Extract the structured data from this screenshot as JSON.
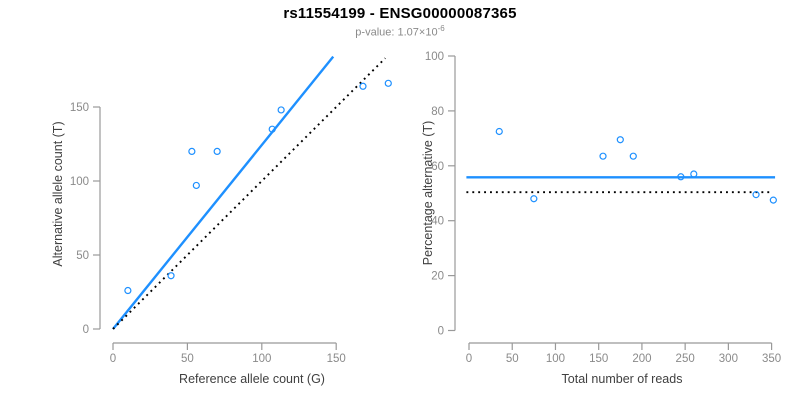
{
  "header": {
    "title": "rs11554199 - ENSG00000087365",
    "subtitle_prefix": "p-value: 1.07×10",
    "subtitle_exponent": "-6"
  },
  "colors": {
    "accent_blue": "#1E90FF",
    "dotted_black": "#000000",
    "axis_line_gray": "#999999",
    "tick_label_gray": "#8a8a8a",
    "axis_title_dark": "#404040",
    "title_black": "#000000",
    "subtitle_gray": "#8a8a8a"
  },
  "chart_data": [
    {
      "type": "scatter",
      "panel": "left",
      "title": "",
      "xlabel": "Reference allele count (G)",
      "ylabel": "Alternative allele count (T)",
      "xticks": [
        0,
        50,
        100,
        150
      ],
      "yticks": [
        0,
        50,
        100,
        150
      ],
      "xlim": [
        0,
        190
      ],
      "ylim": [
        0,
        188
      ],
      "grid": false,
      "legend": null,
      "marker": "open-circle",
      "points": [
        [
          10,
          26
        ],
        [
          39,
          36
        ],
        [
          53,
          120
        ],
        [
          56,
          97
        ],
        [
          70,
          120
        ],
        [
          107,
          135
        ],
        [
          113,
          148
        ],
        [
          168,
          164
        ],
        [
          185,
          166
        ]
      ],
      "lines": [
        {
          "name": "fit-line",
          "style": "solid",
          "color_key": "accent_blue",
          "from": [
            0,
            0
          ],
          "to": [
            148,
            184
          ]
        },
        {
          "name": "identity-line",
          "style": "dotted",
          "color_key": "dotted_black",
          "from": [
            0,
            0
          ],
          "to": [
            183,
            183
          ]
        }
      ]
    },
    {
      "type": "scatter",
      "panel": "right",
      "title": "",
      "xlabel": "Total number of reads",
      "ylabel": "Percentage alternative (T)",
      "xticks": [
        0,
        50,
        100,
        150,
        200,
        250,
        300,
        350
      ],
      "yticks": [
        0,
        20,
        40,
        60,
        80,
        100
      ],
      "xlim": [
        0,
        355
      ],
      "ylim": [
        0,
        100
      ],
      "grid": false,
      "legend": null,
      "marker": "open-circle",
      "points": [
        [
          35,
          72.5
        ],
        [
          75,
          48
        ],
        [
          155,
          63.5
        ],
        [
          175,
          69.5
        ],
        [
          190,
          63.5
        ],
        [
          245,
          56
        ],
        [
          260,
          57
        ],
        [
          332,
          49.5
        ],
        [
          352,
          47.5
        ]
      ],
      "lines": [
        {
          "name": "mean-percentage-line",
          "style": "solid",
          "color_key": "accent_blue",
          "from": [
            -3,
            55.8
          ],
          "to": [
            354,
            55.8
          ]
        },
        {
          "name": "fifty-percent-line",
          "style": "dotted",
          "color_key": "dotted_black",
          "from": [
            -3,
            50.4
          ],
          "to": [
            348,
            50.4
          ]
        }
      ]
    }
  ]
}
